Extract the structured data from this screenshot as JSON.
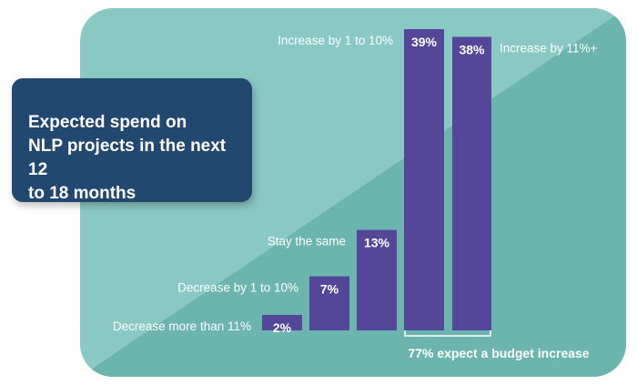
{
  "chart_data": {
    "type": "bar",
    "title": "Expected spend on\nNLP projects in the next 12\nto 18 months",
    "categories": [
      "Decrease more than 11%",
      "Decrease by 1 to 10%",
      "Stay the same",
      "Increase by 1 to 10%",
      "Increase by 11%+"
    ],
    "values": [
      2,
      7,
      13,
      39,
      38
    ],
    "data_labels": [
      "2%",
      "7%",
      "13%",
      "39%",
      "38%"
    ],
    "unit": "%",
    "ylim": [
      0,
      39
    ],
    "grid": false,
    "annotation": "77% expect a budget increase",
    "colors": {
      "bar": "#54479a",
      "panel_light": "#8ac8c3",
      "panel_dark": "#6cb5ae",
      "title_box": "#23486f",
      "label_text": "#ffffff"
    }
  }
}
